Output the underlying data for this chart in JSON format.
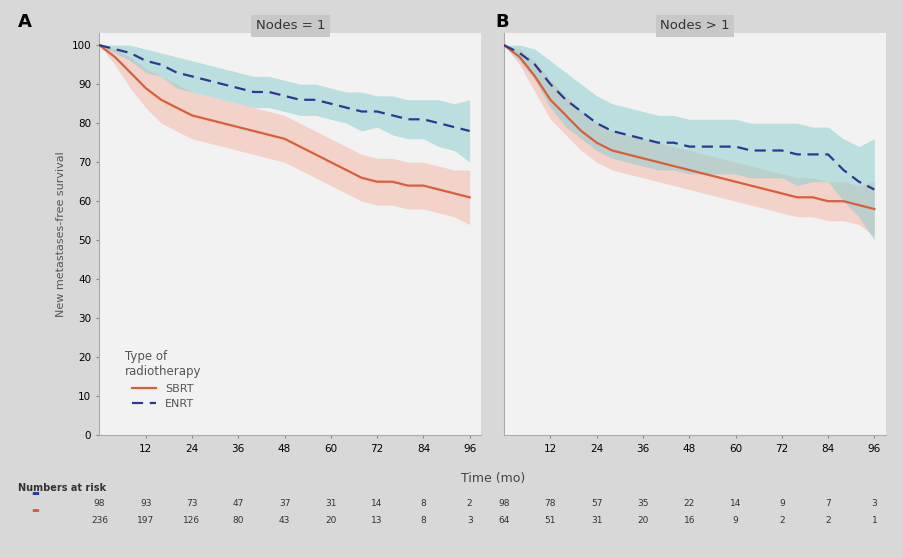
{
  "panel_A_title": "Nodes = 1",
  "panel_B_title": "Nodes > 1",
  "xlabel": "Time (mo)",
  "ylabel": "New metastases-free survival",
  "xticks": [
    12,
    24,
    36,
    48,
    60,
    72,
    84,
    96
  ],
  "yticks": [
    0,
    10,
    20,
    30,
    40,
    50,
    60,
    70,
    80,
    90,
    100
  ],
  "ylim": [
    0,
    103
  ],
  "xlim": [
    0,
    99
  ],
  "background_color": "#d8d8d8",
  "plot_bg_color": "#f2f2f2",
  "sbrt_color": "#d95f3b",
  "enrt_color": "#2b3990",
  "sbrt_fill_color": "#f4b8aa",
  "enrt_fill_color": "#8ecece",
  "A_enrt_x": [
    0,
    4,
    8,
    12,
    16,
    20,
    24,
    28,
    32,
    36,
    40,
    44,
    48,
    52,
    56,
    60,
    64,
    68,
    72,
    76,
    80,
    84,
    88,
    92,
    96
  ],
  "A_enrt_y": [
    100,
    99,
    98,
    96,
    95,
    93,
    92,
    91,
    90,
    89,
    88,
    88,
    87,
    86,
    86,
    85,
    84,
    83,
    83,
    82,
    81,
    81,
    80,
    79,
    78
  ],
  "A_enrt_upper": [
    100,
    100,
    100,
    99,
    98,
    97,
    96,
    95,
    94,
    93,
    92,
    92,
    91,
    90,
    90,
    89,
    88,
    88,
    87,
    87,
    86,
    86,
    86,
    85,
    86
  ],
  "A_enrt_lower": [
    100,
    98,
    96,
    93,
    92,
    89,
    88,
    87,
    86,
    85,
    84,
    84,
    83,
    82,
    82,
    81,
    80,
    78,
    79,
    77,
    76,
    76,
    74,
    73,
    70
  ],
  "A_sbrt_x": [
    0,
    4,
    8,
    12,
    16,
    20,
    24,
    28,
    32,
    36,
    40,
    44,
    48,
    52,
    56,
    60,
    64,
    68,
    72,
    76,
    80,
    84,
    88,
    92,
    96
  ],
  "A_sbrt_y": [
    100,
    97,
    93,
    89,
    86,
    84,
    82,
    81,
    80,
    79,
    78,
    77,
    76,
    74,
    72,
    70,
    68,
    66,
    65,
    65,
    64,
    64,
    63,
    62,
    61
  ],
  "A_sbrt_upper": [
    100,
    99,
    97,
    94,
    92,
    90,
    88,
    87,
    86,
    85,
    84,
    83,
    82,
    80,
    78,
    76,
    74,
    72,
    71,
    71,
    70,
    70,
    69,
    68,
    68
  ],
  "A_sbrt_lower": [
    100,
    95,
    89,
    84,
    80,
    78,
    76,
    75,
    74,
    73,
    72,
    71,
    70,
    68,
    66,
    64,
    62,
    60,
    59,
    59,
    58,
    58,
    57,
    56,
    54
  ],
  "B_enrt_x": [
    0,
    4,
    8,
    12,
    16,
    20,
    24,
    28,
    32,
    36,
    40,
    44,
    48,
    52,
    56,
    60,
    64,
    68,
    72,
    76,
    80,
    84,
    88,
    92,
    96
  ],
  "B_enrt_y": [
    100,
    98,
    95,
    90,
    86,
    83,
    80,
    78,
    77,
    76,
    75,
    75,
    74,
    74,
    74,
    74,
    73,
    73,
    73,
    72,
    72,
    72,
    68,
    65,
    63
  ],
  "B_enrt_upper": [
    100,
    100,
    99,
    96,
    93,
    90,
    87,
    85,
    84,
    83,
    82,
    82,
    81,
    81,
    81,
    81,
    80,
    80,
    80,
    80,
    79,
    79,
    76,
    74,
    76
  ],
  "B_enrt_lower": [
    100,
    96,
    91,
    84,
    79,
    76,
    73,
    71,
    70,
    69,
    68,
    68,
    67,
    67,
    67,
    67,
    66,
    66,
    66,
    64,
    65,
    65,
    60,
    56,
    50
  ],
  "B_sbrt_x": [
    0,
    4,
    8,
    12,
    16,
    20,
    24,
    28,
    32,
    36,
    40,
    44,
    48,
    52,
    56,
    60,
    64,
    68,
    72,
    76,
    80,
    84,
    88,
    92,
    96
  ],
  "B_sbrt_y": [
    100,
    97,
    92,
    86,
    82,
    78,
    75,
    73,
    72,
    71,
    70,
    69,
    68,
    67,
    66,
    65,
    64,
    63,
    62,
    61,
    61,
    60,
    60,
    59,
    58
  ],
  "B_sbrt_upper": [
    100,
    99,
    96,
    91,
    87,
    83,
    80,
    78,
    77,
    76,
    75,
    74,
    73,
    72,
    71,
    70,
    69,
    68,
    67,
    66,
    66,
    65,
    65,
    64,
    65
  ],
  "B_sbrt_lower": [
    100,
    95,
    88,
    81,
    77,
    73,
    70,
    68,
    67,
    66,
    65,
    64,
    63,
    62,
    61,
    60,
    59,
    58,
    57,
    56,
    56,
    55,
    55,
    54,
    51
  ],
  "risk_A_enrt_times": [
    0,
    12,
    24,
    36,
    48,
    60,
    72,
    84,
    96
  ],
  "risk_A_enrt": [
    98,
    93,
    73,
    47,
    37,
    31,
    14,
    8,
    2
  ],
  "risk_A_sbrt": [
    236,
    197,
    126,
    80,
    43,
    20,
    13,
    8,
    3
  ],
  "risk_B_enrt": [
    98,
    78,
    57,
    35,
    22,
    14,
    9,
    7,
    3
  ],
  "risk_B_sbrt": [
    64,
    51,
    31,
    20,
    16,
    9,
    2,
    2,
    1
  ],
  "legend_title": "Type of\nradiotherapy",
  "legend_sbrt": "SBRT",
  "legend_enrt": "ENRT",
  "panel_A_label": "A",
  "panel_B_label": "B",
  "risk_label": "Numbers at risk"
}
